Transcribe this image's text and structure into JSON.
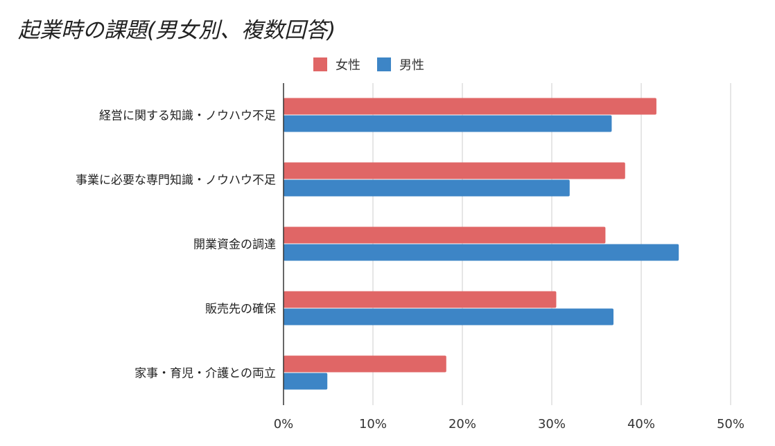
{
  "title": "起業時の課題(男女別、複数回答)",
  "colors": {
    "female": "#e06666",
    "male": "#3d85c6",
    "grid": "#cccccc",
    "axis": "#333333"
  },
  "chart_data": {
    "type": "bar",
    "orientation": "horizontal",
    "title": "起業時の課題(男女別、複数回答)",
    "categories": [
      "経営に関する知識・ノウハウ不足",
      "事業に必要な専門知識・ノウハウ不足",
      "開業資金の調達",
      "販売先の確保",
      "家事・育児・介護との両立"
    ],
    "series": [
      {
        "name": "女性",
        "values": [
          41.7,
          38.2,
          36.0,
          30.5,
          18.2
        ]
      },
      {
        "name": "男性",
        "values": [
          36.7,
          32.0,
          44.2,
          36.9,
          4.9
        ]
      }
    ],
    "xlim": [
      0,
      50
    ],
    "xticks": [
      "0%",
      "10%",
      "20%",
      "30%",
      "40%",
      "50%"
    ],
    "grid": true,
    "legend": "top"
  }
}
